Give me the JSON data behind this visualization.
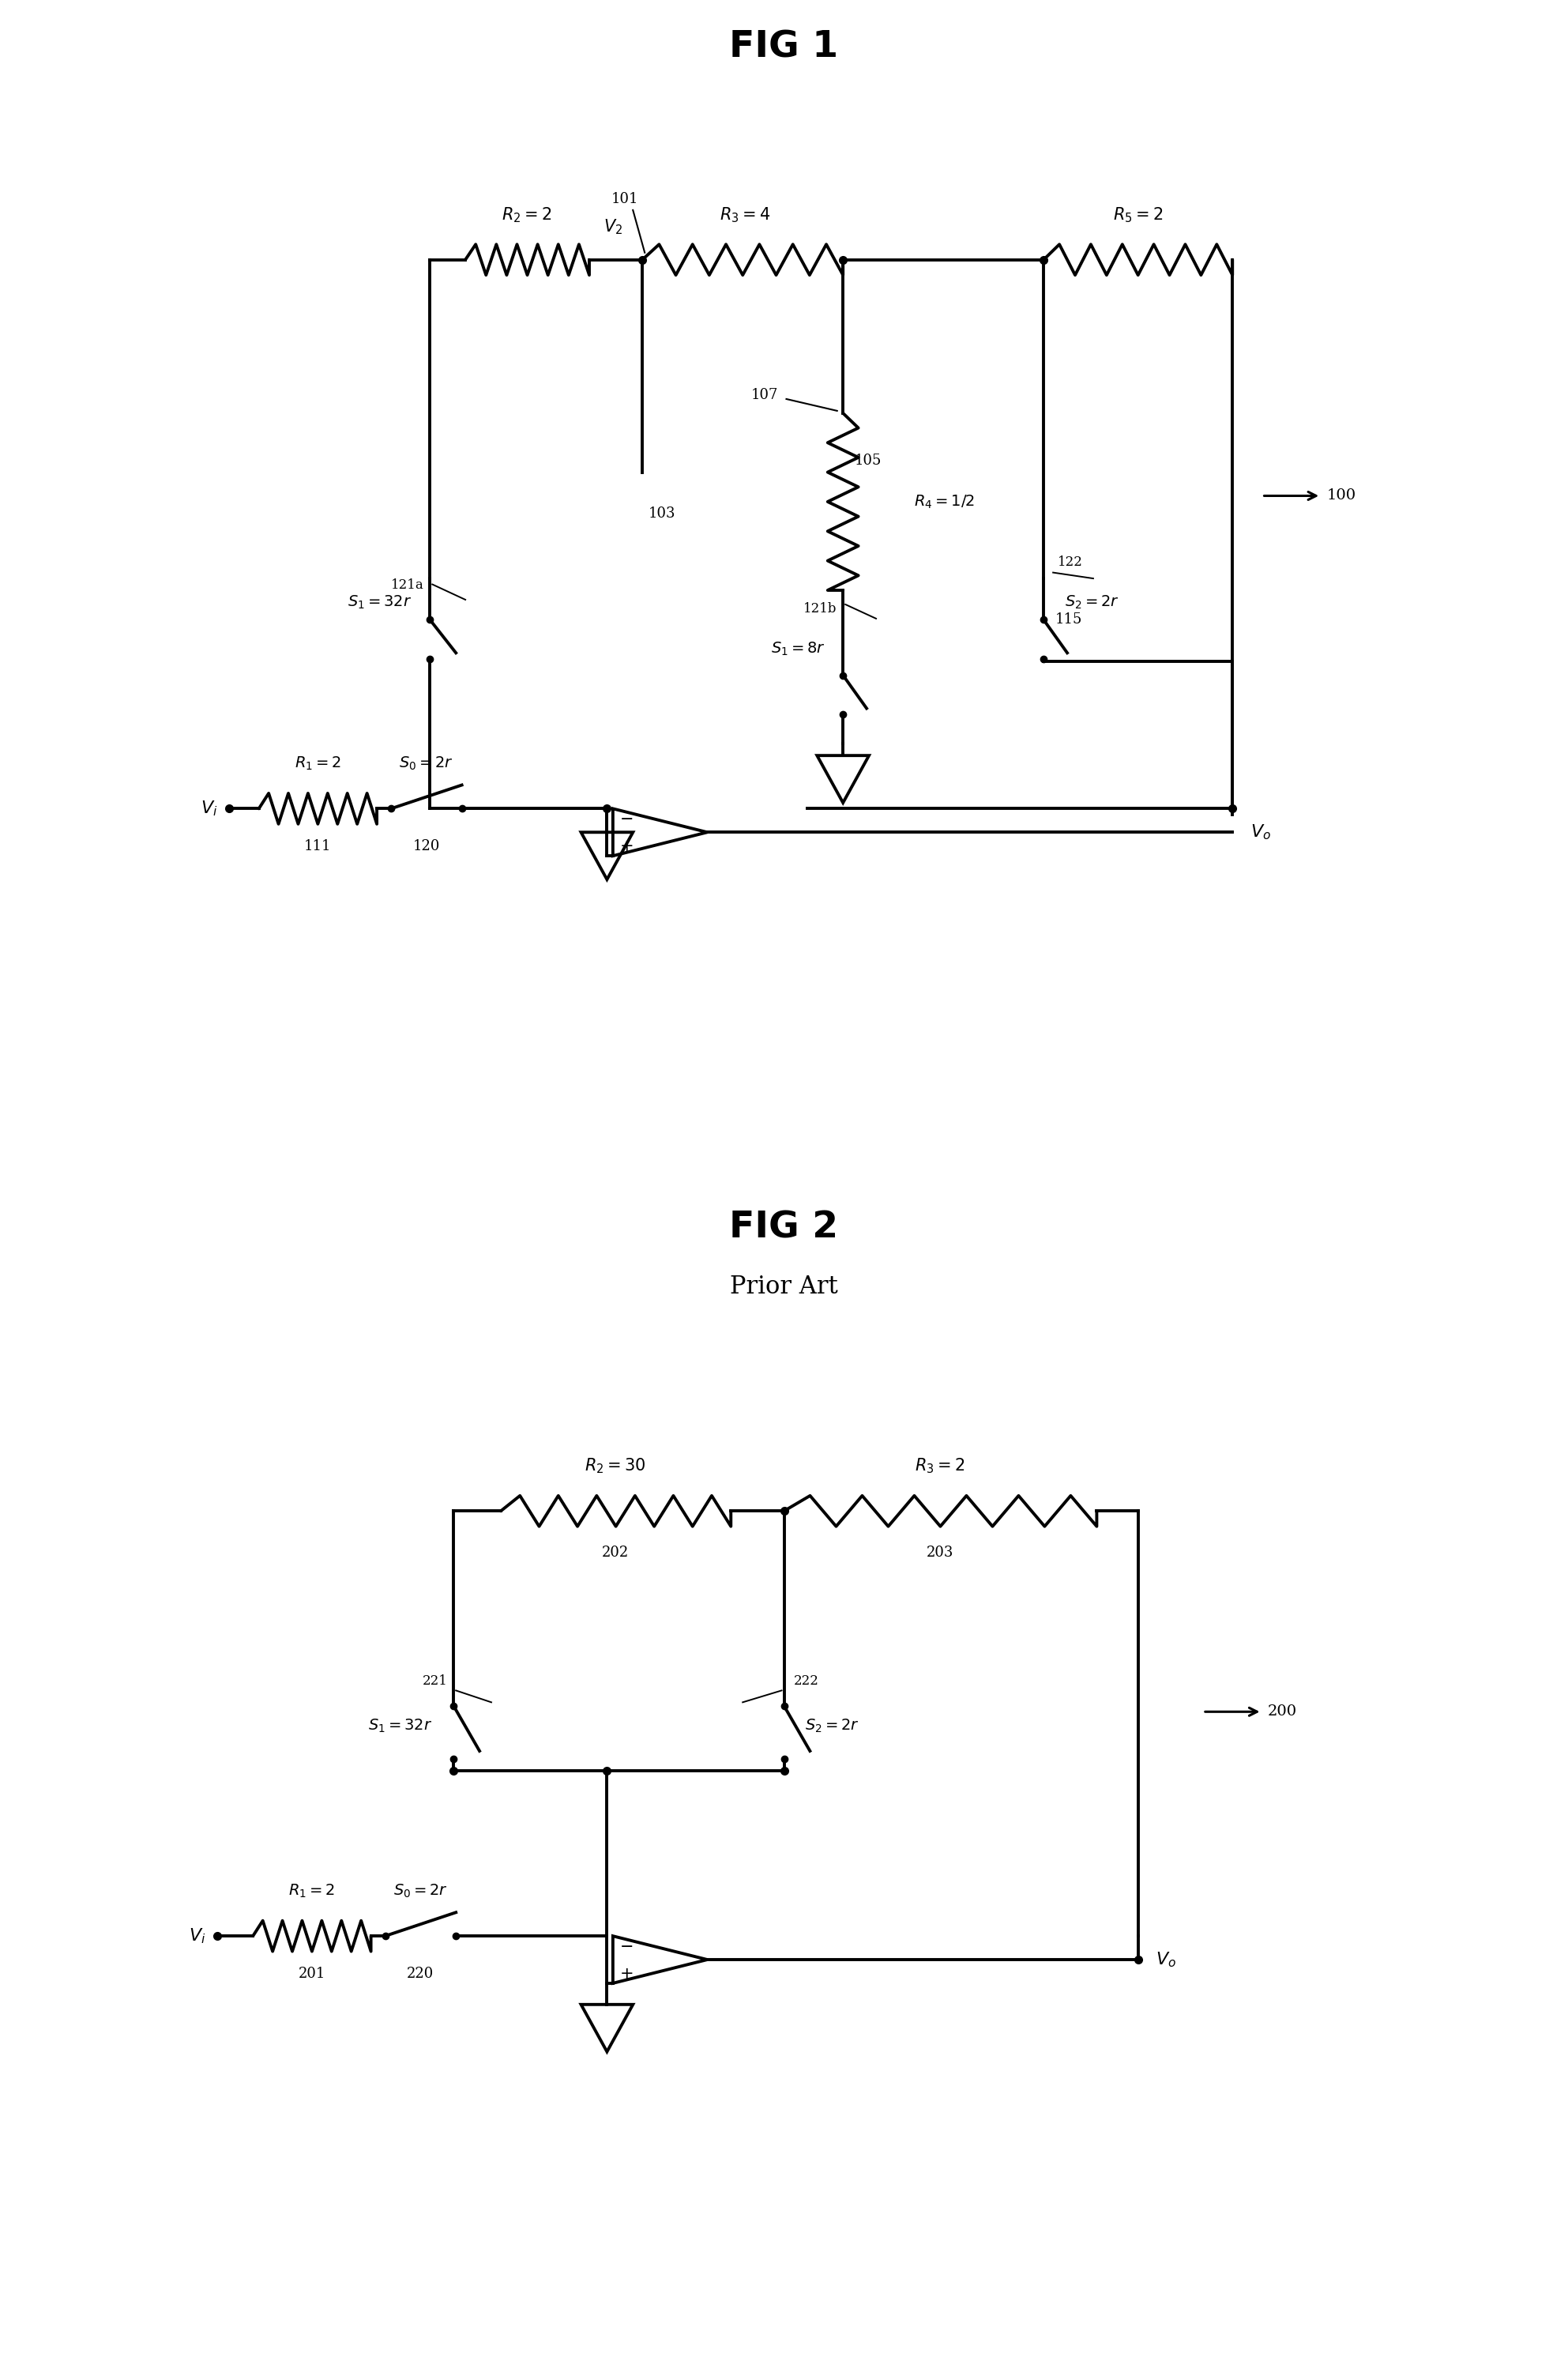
{
  "background_color": "#ffffff",
  "line_color": "#000000",
  "line_width": 2.8,
  "fig1_title": "FIG 1",
  "fig2_title": "FIG 2",
  "fig2_subtitle": "Prior Art"
}
